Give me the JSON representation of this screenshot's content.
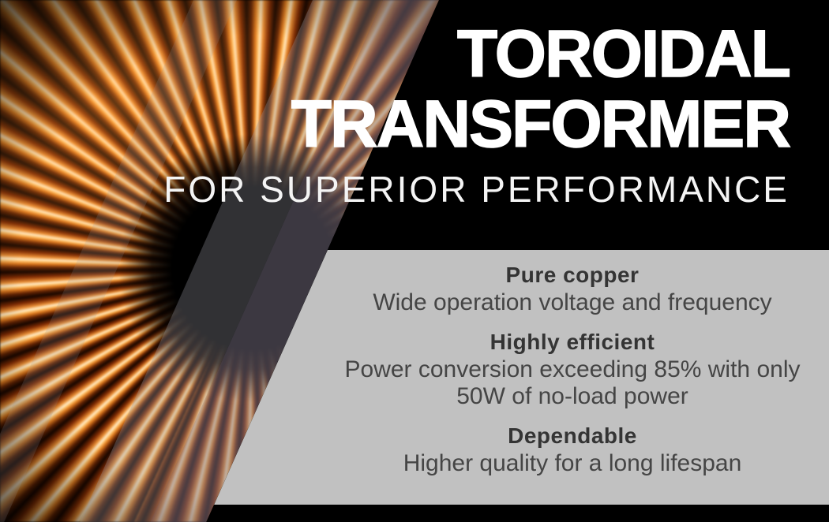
{
  "banner": {
    "title_line1": "TOROIDAL",
    "title_line2": "TRANSFORMER",
    "subtitle": "FOR SUPERIOR PERFORMANCE",
    "features": [
      {
        "heading": "Pure copper",
        "body": "Wide operation voltage and frequency"
      },
      {
        "heading": "Highly efficient",
        "body": "Power conversion exceeding 85% with only 50W of no-load power"
      },
      {
        "heading": "Dependable",
        "body": "Higher quality for a long lifespan"
      }
    ],
    "image_alt": "Close-up photo of a copper toroidal transformer coil on a black background",
    "colors": {
      "background": "#000000",
      "panel_gray": "#c1c1c1",
      "title_text": "#ffffff",
      "heading_text": "#343434",
      "body_text": "#454545",
      "copper_accent": "#d97a22"
    }
  }
}
